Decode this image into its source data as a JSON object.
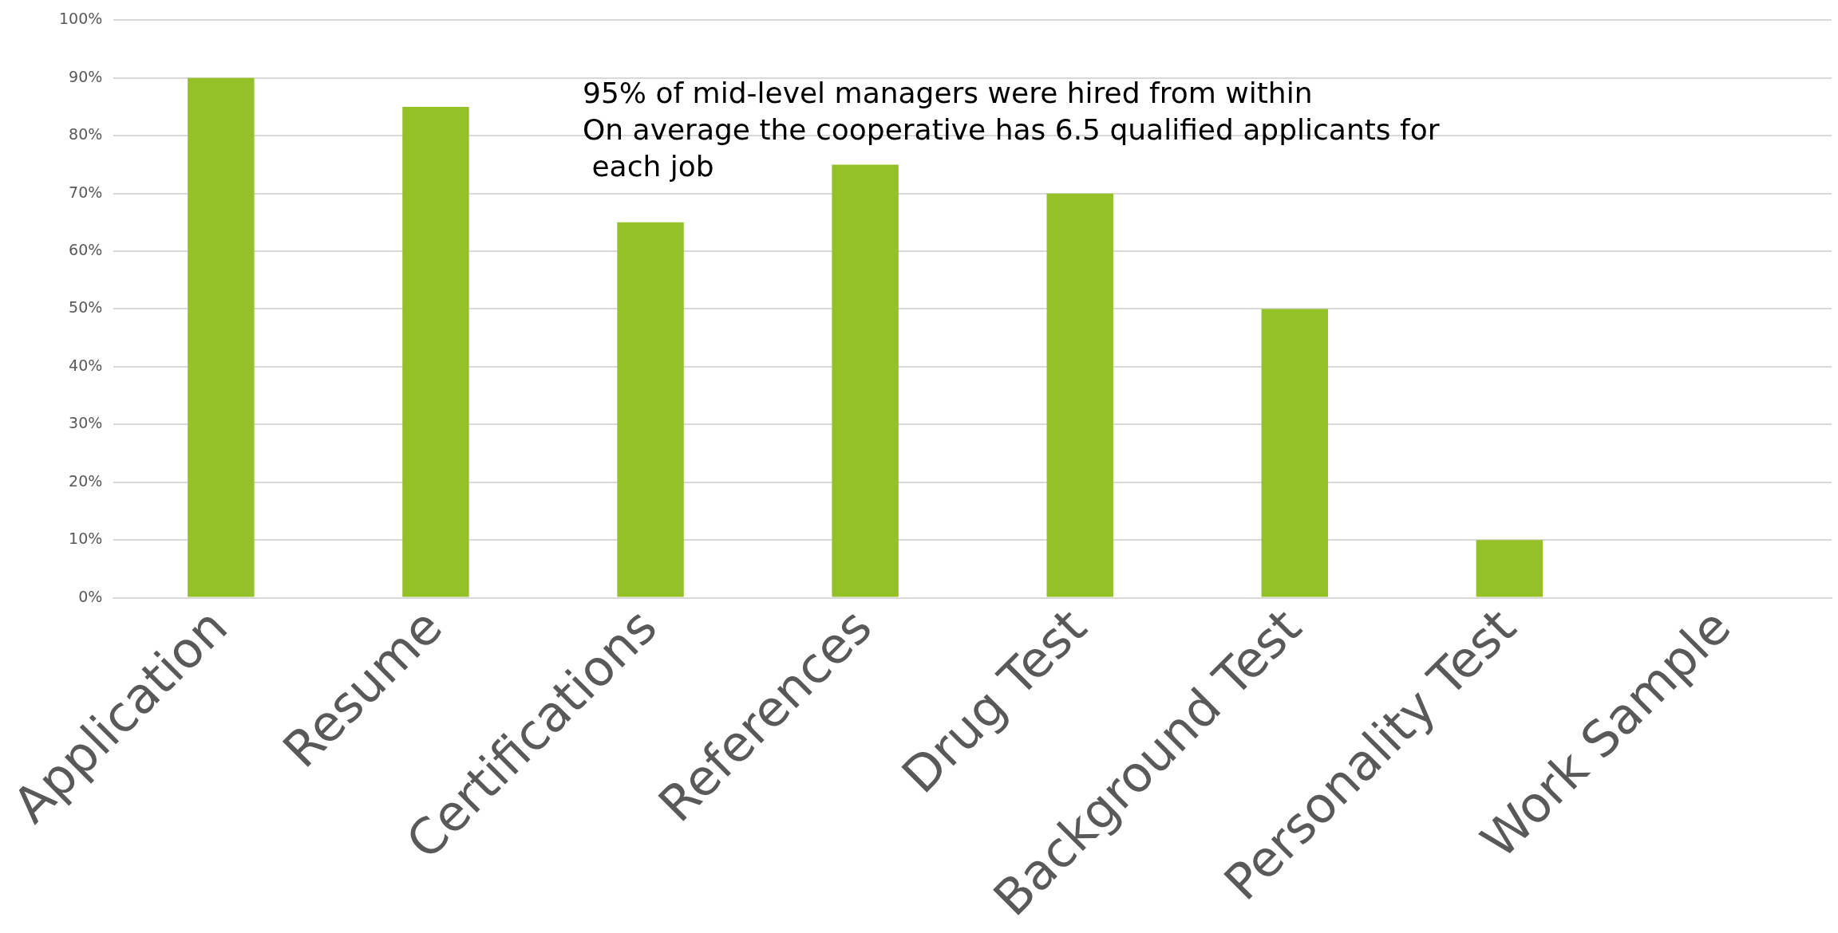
{
  "chart_data": {
    "type": "bar",
    "categories": [
      "Application",
      "Resume",
      "Certifications",
      "References",
      "Drug Test",
      "Background Test",
      "Personality Test",
      "Work Sample"
    ],
    "values": [
      90,
      85,
      65,
      75,
      70,
      50,
      10,
      0
    ],
    "color": "#93c127",
    "ylim": [
      0,
      100
    ],
    "yticks": [
      {
        "value": 0,
        "label": "0%"
      },
      {
        "value": 10,
        "label": "10%"
      },
      {
        "value": 20,
        "label": "20%"
      },
      {
        "value": 30,
        "label": "30%"
      },
      {
        "value": 40,
        "label": "40%"
      },
      {
        "value": 50,
        "label": "50%"
      },
      {
        "value": 60,
        "label": "60%"
      },
      {
        "value": 70,
        "label": "70%"
      },
      {
        "value": 80,
        "label": "80%"
      },
      {
        "value": 90,
        "label": "90%"
      },
      {
        "value": 100,
        "label": "100%"
      }
    ],
    "grid": "y",
    "annotations": [
      "95% of mid-level managers were hired from within",
      "On average the cooperative has 6.5 qualified applicants for each job"
    ]
  }
}
